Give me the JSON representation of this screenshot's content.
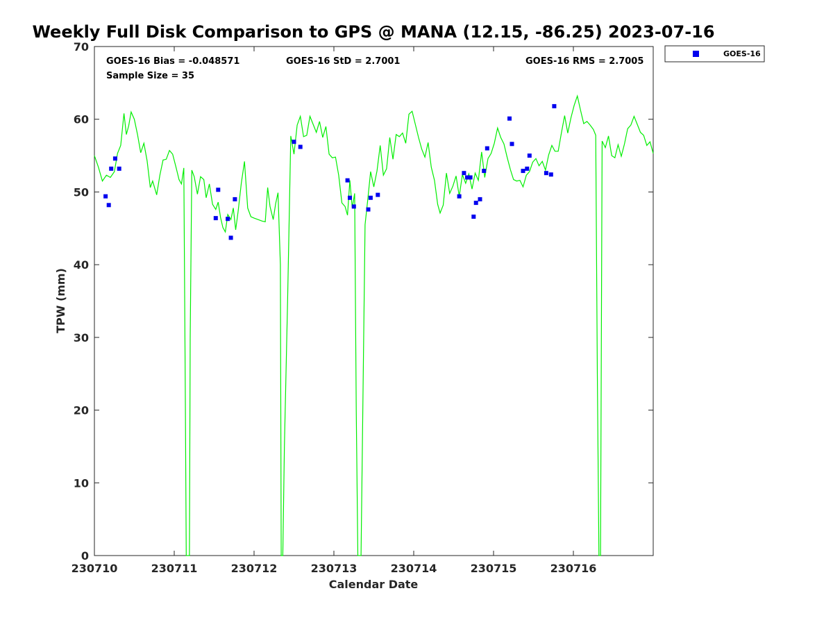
{
  "chart_data": {
    "type": "scatter",
    "title": "Weekly Full Disk Comparison to GPS @ MANA (12.15, -86.25) 2023-07-16",
    "xlabel": "Calendar Date",
    "ylabel": "TPW (mm)",
    "xlim": [
      0,
      7.0
    ],
    "ylim": [
      0,
      70
    ],
    "x_tick_values": [
      0,
      1,
      2,
      3,
      4,
      5,
      6
    ],
    "x_tick_labels": [
      "230710",
      "230711",
      "230712",
      "230713",
      "230714",
      "230715",
      "230716"
    ],
    "y_tick_values": [
      0,
      10,
      20,
      30,
      40,
      50,
      60,
      70
    ],
    "y_tick_labels": [
      "0",
      "10",
      "20",
      "30",
      "40",
      "50",
      "60",
      "70"
    ],
    "stats": {
      "bias": "GOES-16 Bias = -0.048571",
      "std": "GOES-16 StD = 2.7001",
      "rms": "GOES-16 RMS = 2.7005",
      "sample": "Sample Size = 35"
    },
    "legend": {
      "position": "top-right-outside",
      "label": "GOES-16",
      "color": "#0000ee"
    },
    "gps_color": "#00ee00",
    "goes_series": [
      [
        0.14,
        49.4
      ],
      [
        0.18,
        48.2
      ],
      [
        0.21,
        53.2
      ],
      [
        0.26,
        54.6
      ],
      [
        0.31,
        53.2
      ],
      [
        1.52,
        46.4
      ],
      [
        1.55,
        50.3
      ],
      [
        1.67,
        46.3
      ],
      [
        1.71,
        43.7
      ],
      [
        1.76,
        49.0
      ],
      [
        2.5,
        56.9
      ],
      [
        2.58,
        56.2
      ],
      [
        3.17,
        51.6
      ],
      [
        3.2,
        49.2
      ],
      [
        3.25,
        48.0
      ],
      [
        3.43,
        47.6
      ],
      [
        3.46,
        49.2
      ],
      [
        3.55,
        49.6
      ],
      [
        4.57,
        49.4
      ],
      [
        4.63,
        52.6
      ],
      [
        4.67,
        52.0
      ],
      [
        4.71,
        52.0
      ],
      [
        4.75,
        46.6
      ],
      [
        4.78,
        48.5
      ],
      [
        4.83,
        49.0
      ],
      [
        4.88,
        52.9
      ],
      [
        4.92,
        56.0
      ],
      [
        5.2,
        60.1
      ],
      [
        5.23,
        56.6
      ],
      [
        5.37,
        52.9
      ],
      [
        5.42,
        53.2
      ],
      [
        5.45,
        55.0
      ],
      [
        5.66,
        52.6
      ],
      [
        5.72,
        52.4
      ],
      [
        5.76,
        61.8
      ]
    ],
    "gps_series": [
      [
        0.0,
        55.0
      ],
      [
        0.05,
        53.4
      ],
      [
        0.1,
        51.5
      ],
      [
        0.15,
        52.3
      ],
      [
        0.2,
        52.0
      ],
      [
        0.25,
        52.8
      ],
      [
        0.29,
        55.3
      ],
      [
        0.33,
        56.4
      ],
      [
        0.37,
        60.8
      ],
      [
        0.4,
        57.9
      ],
      [
        0.43,
        59.1
      ],
      [
        0.46,
        61.0
      ],
      [
        0.5,
        60.0
      ],
      [
        0.54,
        57.9
      ],
      [
        0.58,
        55.4
      ],
      [
        0.62,
        56.7
      ],
      [
        0.66,
        54.3
      ],
      [
        0.7,
        50.6
      ],
      [
        0.73,
        51.5
      ],
      [
        0.78,
        49.6
      ],
      [
        0.82,
        52.3
      ],
      [
        0.86,
        54.4
      ],
      [
        0.9,
        54.5
      ],
      [
        0.94,
        55.7
      ],
      [
        0.98,
        55.2
      ],
      [
        1.02,
        53.5
      ],
      [
        1.06,
        51.7
      ],
      [
        1.09,
        51.1
      ],
      [
        1.12,
        53.3
      ],
      [
        1.14,
        20.0
      ],
      [
        1.15,
        0.0
      ],
      [
        1.17,
        0.0
      ],
      [
        1.19,
        0.0
      ],
      [
        1.2,
        30.0
      ],
      [
        1.22,
        53.0
      ],
      [
        1.25,
        52.1
      ],
      [
        1.29,
        49.7
      ],
      [
        1.33,
        52.1
      ],
      [
        1.37,
        51.7
      ],
      [
        1.4,
        49.2
      ],
      [
        1.44,
        51.1
      ],
      [
        1.48,
        48.3
      ],
      [
        1.52,
        47.6
      ],
      [
        1.55,
        48.6
      ],
      [
        1.58,
        46.5
      ],
      [
        1.61,
        45.1
      ],
      [
        1.64,
        44.5
      ],
      [
        1.67,
        46.9
      ],
      [
        1.71,
        46.2
      ],
      [
        1.74,
        47.8
      ],
      [
        1.77,
        44.8
      ],
      [
        1.8,
        47.3
      ],
      [
        1.84,
        51.2
      ],
      [
        1.88,
        54.2
      ],
      [
        1.92,
        47.8
      ],
      [
        1.96,
        46.6
      ],
      [
        2.0,
        46.4
      ],
      [
        2.05,
        46.2
      ],
      [
        2.1,
        46.0
      ],
      [
        2.14,
        45.9
      ],
      [
        2.17,
        50.6
      ],
      [
        2.2,
        48.0
      ],
      [
        2.24,
        46.2
      ],
      [
        2.27,
        48.4
      ],
      [
        2.3,
        49.9
      ],
      [
        2.33,
        40.0
      ],
      [
        2.34,
        0.0
      ],
      [
        2.36,
        0.0
      ],
      [
        2.38,
        15.0
      ],
      [
        2.42,
        35.0
      ],
      [
        2.46,
        57.7
      ],
      [
        2.5,
        55.2
      ],
      [
        2.54,
        59.2
      ],
      [
        2.58,
        60.4
      ],
      [
        2.62,
        57.6
      ],
      [
        2.66,
        57.8
      ],
      [
        2.7,
        60.4
      ],
      [
        2.74,
        59.3
      ],
      [
        2.78,
        58.2
      ],
      [
        2.82,
        59.7
      ],
      [
        2.86,
        57.5
      ],
      [
        2.9,
        59.0
      ],
      [
        2.94,
        55.2
      ],
      [
        2.98,
        54.7
      ],
      [
        3.02,
        54.8
      ],
      [
        3.06,
        52.3
      ],
      [
        3.1,
        48.5
      ],
      [
        3.14,
        48.0
      ],
      [
        3.17,
        46.8
      ],
      [
        3.2,
        51.6
      ],
      [
        3.23,
        47.8
      ],
      [
        3.26,
        49.8
      ],
      [
        3.28,
        20.0
      ],
      [
        3.3,
        0.0
      ],
      [
        3.34,
        0.0
      ],
      [
        3.36,
        18.0
      ],
      [
        3.39,
        45.5
      ],
      [
        3.42,
        48.5
      ],
      [
        3.46,
        52.8
      ],
      [
        3.5,
        50.7
      ],
      [
        3.54,
        52.9
      ],
      [
        3.58,
        56.4
      ],
      [
        3.62,
        52.3
      ],
      [
        3.66,
        53.2
      ],
      [
        3.7,
        57.5
      ],
      [
        3.74,
        54.5
      ],
      [
        3.78,
        57.9
      ],
      [
        3.82,
        57.6
      ],
      [
        3.86,
        58.1
      ],
      [
        3.9,
        56.7
      ],
      [
        3.94,
        60.7
      ],
      [
        3.98,
        61.1
      ],
      [
        4.02,
        59.3
      ],
      [
        4.06,
        57.5
      ],
      [
        4.1,
        55.9
      ],
      [
        4.14,
        54.8
      ],
      [
        4.18,
        56.8
      ],
      [
        4.22,
        53.4
      ],
      [
        4.26,
        51.6
      ],
      [
        4.3,
        48.3
      ],
      [
        4.33,
        47.1
      ],
      [
        4.37,
        48.2
      ],
      [
        4.41,
        52.6
      ],
      [
        4.45,
        49.8
      ],
      [
        4.49,
        50.8
      ],
      [
        4.53,
        52.2
      ],
      [
        4.57,
        49.4
      ],
      [
        4.61,
        52.4
      ],
      [
        4.65,
        51.2
      ],
      [
        4.69,
        52.5
      ],
      [
        4.73,
        50.4
      ],
      [
        4.77,
        52.6
      ],
      [
        4.81,
        51.6
      ],
      [
        4.85,
        55.5
      ],
      [
        4.89,
        52.0
      ],
      [
        4.93,
        54.6
      ],
      [
        4.97,
        55.3
      ],
      [
        5.01,
        56.7
      ],
      [
        5.05,
        58.8
      ],
      [
        5.09,
        57.5
      ],
      [
        5.13,
        56.6
      ],
      [
        5.17,
        54.8
      ],
      [
        5.21,
        53.1
      ],
      [
        5.25,
        51.7
      ],
      [
        5.29,
        51.5
      ],
      [
        5.33,
        51.6
      ],
      [
        5.37,
        50.7
      ],
      [
        5.41,
        52.3
      ],
      [
        5.45,
        52.8
      ],
      [
        5.49,
        54.1
      ],
      [
        5.53,
        54.6
      ],
      [
        5.57,
        53.6
      ],
      [
        5.61,
        54.2
      ],
      [
        5.65,
        53.0
      ],
      [
        5.69,
        55.1
      ],
      [
        5.73,
        56.4
      ],
      [
        5.77,
        55.6
      ],
      [
        5.81,
        55.6
      ],
      [
        5.85,
        58.1
      ],
      [
        5.89,
        60.5
      ],
      [
        5.93,
        58.1
      ],
      [
        5.97,
        60.2
      ],
      [
        6.01,
        61.9
      ],
      [
        6.05,
        63.2
      ],
      [
        6.09,
        61.2
      ],
      [
        6.13,
        59.4
      ],
      [
        6.17,
        59.7
      ],
      [
        6.21,
        59.2
      ],
      [
        6.25,
        58.6
      ],
      [
        6.28,
        57.8
      ],
      [
        6.3,
        25.0
      ],
      [
        6.32,
        0.0
      ],
      [
        6.34,
        0.0
      ],
      [
        6.36,
        57.0
      ],
      [
        6.4,
        56.1
      ],
      [
        6.44,
        57.7
      ],
      [
        6.48,
        55.0
      ],
      [
        6.52,
        54.7
      ],
      [
        6.56,
        56.5
      ],
      [
        6.6,
        54.9
      ],
      [
        6.64,
        56.6
      ],
      [
        6.68,
        58.7
      ],
      [
        6.72,
        59.2
      ],
      [
        6.76,
        60.4
      ],
      [
        6.8,
        59.3
      ],
      [
        6.84,
        58.2
      ],
      [
        6.88,
        57.8
      ],
      [
        6.92,
        56.4
      ],
      [
        6.96,
        56.9
      ],
      [
        7.0,
        55.3
      ]
    ]
  }
}
